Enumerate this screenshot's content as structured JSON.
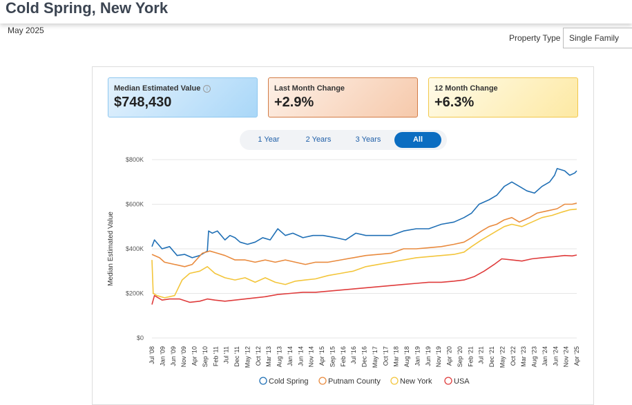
{
  "header": {
    "title": "Cold Spring, New York",
    "date": "May 2025"
  },
  "filter": {
    "label": "Property Type",
    "selected": "Single Family"
  },
  "cards": {
    "median": {
      "label": "Median Estimated Value",
      "value": "$748,430"
    },
    "last_month": {
      "label": "Last Month Change",
      "value": "+2.9%"
    },
    "twelve_month": {
      "label": "12 Month Change",
      "value": "+6.3%"
    }
  },
  "ranges": [
    "1 Year",
    "2 Years",
    "3 Years",
    "All"
  ],
  "active_range": "All",
  "icons": {
    "info": "info-icon"
  },
  "chart_data": {
    "type": "line",
    "title": "",
    "xlabel": "",
    "ylabel": "Median Estimated Value",
    "ylim": [
      0,
      800000
    ],
    "y_ticks": [
      0,
      200000,
      400000,
      600000,
      800000
    ],
    "y_tick_labels": [
      "$0",
      "$200K",
      "$400K",
      "$600K",
      "$800K"
    ],
    "x_range": [
      2008.5,
      2025.38
    ],
    "x_tick_labels": [
      "Jul '08",
      "Jan '09",
      "Jun '09",
      "Nov '09",
      "Apr '10",
      "Sep '10",
      "Feb '11",
      "Jul '11",
      "Dec '11",
      "May '12",
      "Oct '12",
      "Mar '13",
      "Aug '13",
      "Jan '14",
      "Jun '14",
      "Nov '14",
      "Apr '15",
      "Sep '15",
      "Feb '16",
      "Jul '16",
      "Dec '16",
      "May '17",
      "Oct '17",
      "Mar '18",
      "Aug '18",
      "Jan '19",
      "Jun '19",
      "Nov '19",
      "Apr '20",
      "Sep '20",
      "Feb '21",
      "Jul '21",
      "Dec '21",
      "May '22",
      "Oct '22",
      "Mar '23",
      "Aug '23",
      "Jan '24",
      "Jun '24",
      "Nov '24",
      "Apr '25"
    ],
    "legend": "bottom",
    "series": [
      {
        "name": "Cold Spring",
        "color": "#1f6fb5",
        "points": [
          [
            2008.5,
            410000
          ],
          [
            2008.6,
            440000
          ],
          [
            2008.9,
            400000
          ],
          [
            2009.2,
            410000
          ],
          [
            2009.5,
            370000
          ],
          [
            2009.8,
            375000
          ],
          [
            2010.1,
            360000
          ],
          [
            2010.4,
            370000
          ],
          [
            2010.7,
            390000
          ],
          [
            2010.75,
            480000
          ],
          [
            2010.9,
            470000
          ],
          [
            2011.1,
            480000
          ],
          [
            2011.4,
            440000
          ],
          [
            2011.6,
            460000
          ],
          [
            2011.8,
            450000
          ],
          [
            2012.0,
            430000
          ],
          [
            2012.3,
            420000
          ],
          [
            2012.6,
            430000
          ],
          [
            2012.9,
            450000
          ],
          [
            2013.2,
            440000
          ],
          [
            2013.5,
            490000
          ],
          [
            2013.8,
            460000
          ],
          [
            2014.1,
            470000
          ],
          [
            2014.5,
            450000
          ],
          [
            2014.9,
            460000
          ],
          [
            2015.3,
            460000
          ],
          [
            2015.8,
            450000
          ],
          [
            2016.2,
            440000
          ],
          [
            2016.6,
            470000
          ],
          [
            2017.0,
            460000
          ],
          [
            2017.5,
            460000
          ],
          [
            2018.0,
            460000
          ],
          [
            2018.5,
            480000
          ],
          [
            2019.0,
            490000
          ],
          [
            2019.5,
            490000
          ],
          [
            2020.0,
            510000
          ],
          [
            2020.5,
            520000
          ],
          [
            2020.9,
            540000
          ],
          [
            2021.2,
            560000
          ],
          [
            2021.5,
            600000
          ],
          [
            2021.9,
            620000
          ],
          [
            2022.2,
            640000
          ],
          [
            2022.5,
            680000
          ],
          [
            2022.8,
            700000
          ],
          [
            2023.1,
            680000
          ],
          [
            2023.4,
            660000
          ],
          [
            2023.7,
            650000
          ],
          [
            2024.0,
            680000
          ],
          [
            2024.3,
            700000
          ],
          [
            2024.5,
            730000
          ],
          [
            2024.6,
            760000
          ],
          [
            2024.9,
            750000
          ],
          [
            2025.1,
            730000
          ],
          [
            2025.3,
            740000
          ],
          [
            2025.38,
            750000
          ]
        ]
      },
      {
        "name": "Putnam County",
        "color": "#e98a3d",
        "points": [
          [
            2008.5,
            375000
          ],
          [
            2008.8,
            360000
          ],
          [
            2009.0,
            340000
          ],
          [
            2009.4,
            330000
          ],
          [
            2009.8,
            320000
          ],
          [
            2010.1,
            330000
          ],
          [
            2010.5,
            380000
          ],
          [
            2010.8,
            390000
          ],
          [
            2011.1,
            380000
          ],
          [
            2011.4,
            370000
          ],
          [
            2011.8,
            350000
          ],
          [
            2012.2,
            350000
          ],
          [
            2012.6,
            340000
          ],
          [
            2013.0,
            350000
          ],
          [
            2013.4,
            340000
          ],
          [
            2013.8,
            350000
          ],
          [
            2014.2,
            340000
          ],
          [
            2014.6,
            330000
          ],
          [
            2015.0,
            340000
          ],
          [
            2015.5,
            340000
          ],
          [
            2016.0,
            350000
          ],
          [
            2016.5,
            360000
          ],
          [
            2017.0,
            370000
          ],
          [
            2017.5,
            375000
          ],
          [
            2018.0,
            380000
          ],
          [
            2018.5,
            400000
          ],
          [
            2019.0,
            400000
          ],
          [
            2019.5,
            405000
          ],
          [
            2020.0,
            410000
          ],
          [
            2020.5,
            420000
          ],
          [
            2020.9,
            430000
          ],
          [
            2021.2,
            450000
          ],
          [
            2021.6,
            480000
          ],
          [
            2021.9,
            500000
          ],
          [
            2022.2,
            510000
          ],
          [
            2022.5,
            530000
          ],
          [
            2022.8,
            540000
          ],
          [
            2023.1,
            520000
          ],
          [
            2023.5,
            540000
          ],
          [
            2023.8,
            560000
          ],
          [
            2024.2,
            570000
          ],
          [
            2024.6,
            580000
          ],
          [
            2024.9,
            600000
          ],
          [
            2025.2,
            600000
          ],
          [
            2025.38,
            605000
          ]
        ]
      },
      {
        "name": "New York",
        "color": "#f3c53a",
        "points": [
          [
            2008.5,
            350000
          ],
          [
            2008.55,
            200000
          ],
          [
            2008.7,
            190000
          ],
          [
            2009.0,
            180000
          ],
          [
            2009.4,
            190000
          ],
          [
            2009.7,
            260000
          ],
          [
            2010.0,
            290000
          ],
          [
            2010.4,
            300000
          ],
          [
            2010.7,
            320000
          ],
          [
            2011.0,
            290000
          ],
          [
            2011.4,
            270000
          ],
          [
            2011.8,
            260000
          ],
          [
            2012.2,
            270000
          ],
          [
            2012.6,
            250000
          ],
          [
            2013.0,
            270000
          ],
          [
            2013.4,
            250000
          ],
          [
            2013.8,
            240000
          ],
          [
            2014.2,
            255000
          ],
          [
            2014.6,
            260000
          ],
          [
            2015.0,
            265000
          ],
          [
            2015.5,
            280000
          ],
          [
            2016.0,
            290000
          ],
          [
            2016.5,
            300000
          ],
          [
            2017.0,
            320000
          ],
          [
            2017.5,
            330000
          ],
          [
            2018.0,
            340000
          ],
          [
            2018.5,
            350000
          ],
          [
            2019.0,
            360000
          ],
          [
            2019.5,
            365000
          ],
          [
            2020.0,
            370000
          ],
          [
            2020.5,
            375000
          ],
          [
            2020.9,
            385000
          ],
          [
            2021.2,
            410000
          ],
          [
            2021.6,
            440000
          ],
          [
            2021.9,
            460000
          ],
          [
            2022.2,
            480000
          ],
          [
            2022.5,
            500000
          ],
          [
            2022.8,
            510000
          ],
          [
            2023.2,
            500000
          ],
          [
            2023.6,
            520000
          ],
          [
            2024.0,
            540000
          ],
          [
            2024.4,
            550000
          ],
          [
            2024.8,
            565000
          ],
          [
            2025.1,
            575000
          ],
          [
            2025.38,
            578000
          ]
        ]
      },
      {
        "name": "USA",
        "color": "#df3b3b",
        "points": [
          [
            2008.5,
            150000
          ],
          [
            2008.6,
            190000
          ],
          [
            2008.9,
            170000
          ],
          [
            2009.2,
            175000
          ],
          [
            2009.6,
            175000
          ],
          [
            2010.0,
            160000
          ],
          [
            2010.4,
            165000
          ],
          [
            2010.7,
            175000
          ],
          [
            2011.0,
            170000
          ],
          [
            2011.4,
            165000
          ],
          [
            2011.8,
            170000
          ],
          [
            2012.2,
            175000
          ],
          [
            2012.6,
            180000
          ],
          [
            2013.0,
            185000
          ],
          [
            2013.5,
            195000
          ],
          [
            2014.0,
            200000
          ],
          [
            2014.5,
            205000
          ],
          [
            2015.0,
            205000
          ],
          [
            2015.5,
            210000
          ],
          [
            2016.0,
            215000
          ],
          [
            2016.5,
            220000
          ],
          [
            2017.0,
            225000
          ],
          [
            2017.5,
            230000
          ],
          [
            2018.0,
            235000
          ],
          [
            2018.5,
            240000
          ],
          [
            2019.0,
            245000
          ],
          [
            2019.5,
            250000
          ],
          [
            2020.0,
            250000
          ],
          [
            2020.5,
            255000
          ],
          [
            2020.9,
            260000
          ],
          [
            2021.3,
            275000
          ],
          [
            2021.7,
            300000
          ],
          [
            2022.1,
            330000
          ],
          [
            2022.4,
            355000
          ],
          [
            2022.8,
            350000
          ],
          [
            2023.2,
            345000
          ],
          [
            2023.6,
            355000
          ],
          [
            2024.0,
            360000
          ],
          [
            2024.5,
            365000
          ],
          [
            2024.9,
            370000
          ],
          [
            2025.2,
            368000
          ],
          [
            2025.38,
            372000
          ]
        ]
      }
    ]
  }
}
